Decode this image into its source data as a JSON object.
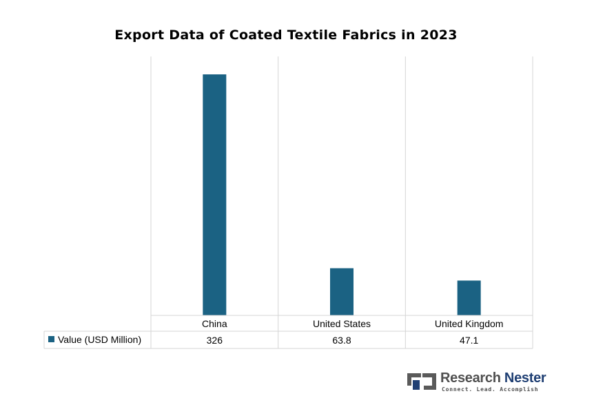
{
  "chart_data": {
    "type": "bar",
    "title": "Export Data of Coated Textile Fabrics in 2023",
    "categories": [
      "China",
      "United States",
      "United Kingdom"
    ],
    "series": [
      {
        "name": "Value (USD Million)",
        "values": [
          326,
          63.8,
          47.1
        ],
        "color": "#1b6283"
      }
    ],
    "data_table": {
      "row_label": "Value (USD Million)",
      "values": [
        "326",
        "63.8",
        "47.1"
      ]
    },
    "grid": true,
    "legend": "data-table"
  },
  "logo": {
    "name_part1": "Research ",
    "name_part2": "Nester",
    "tagline": "Connect. Lead. Accomplish"
  }
}
